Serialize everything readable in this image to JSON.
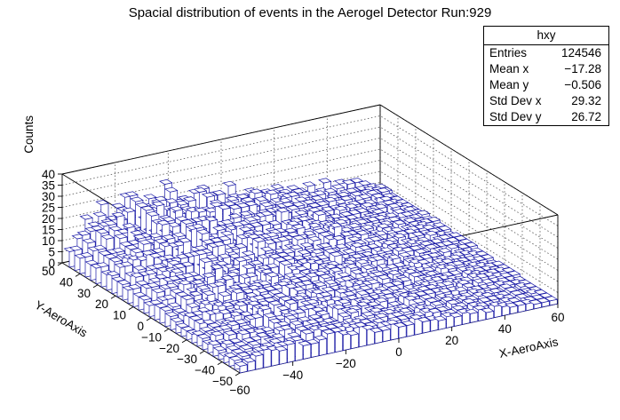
{
  "title": "Spacial distribution of events in the Aerogel Detector Run:929",
  "stats": {
    "name": "hxy",
    "rows": [
      {
        "label": "Entries",
        "value": "124546"
      },
      {
        "label": "Mean x",
        "value": "−17.28"
      },
      {
        "label": "Mean y",
        "value": "−0.506"
      },
      {
        "label": "Std Dev x",
        "value": "29.32"
      },
      {
        "label": "Std Dev y",
        "value": "26.72"
      }
    ]
  },
  "colors": {
    "bars": "#1a1aa6",
    "frame": "#000000",
    "grid": "#555555"
  },
  "chart_data": {
    "type": "lego",
    "title": "Spacial distribution of events in the Aerogel Detector Run:929",
    "xlabel": "X-AeroAxis",
    "ylabel": "Y-AeroAxis",
    "zlabel": "Counts",
    "xlim": [
      -60,
      60
    ],
    "ylim": [
      -50,
      50
    ],
    "zlim": [
      0,
      40
    ],
    "x_ticks": [
      -40,
      -20,
      0,
      20,
      40,
      60
    ],
    "x_tick_labels": [
      "−40",
      "−20",
      "0",
      "20",
      "40",
      "60"
    ],
    "x_corner_label": "−60",
    "y_ticks": [
      -50,
      -40,
      -30,
      -20,
      -10,
      0,
      10,
      20,
      30,
      40,
      50
    ],
    "y_tick_labels": [
      "−50",
      "−40",
      "−30",
      "−20",
      "−10",
      "0",
      "10",
      "20",
      "30",
      "40",
      "50"
    ],
    "z_ticks": [
      0,
      5,
      10,
      15,
      20,
      25,
      30,
      35,
      40
    ],
    "z_tick_labels": [
      "0",
      "5",
      "10",
      "15",
      "20",
      "25",
      "30",
      "35",
      "40"
    ],
    "grid": true,
    "bin_width": 3,
    "back_row_counts": [
      9,
      14,
      17,
      19,
      21,
      18,
      20,
      24,
      19,
      22,
      25,
      20,
      23,
      21,
      18,
      22,
      20,
      17,
      19,
      16,
      18,
      15,
      17,
      14,
      16,
      13,
      15,
      12,
      13,
      11,
      12,
      10,
      11,
      9,
      10,
      8,
      9,
      7,
      6,
      5
    ]
  }
}
